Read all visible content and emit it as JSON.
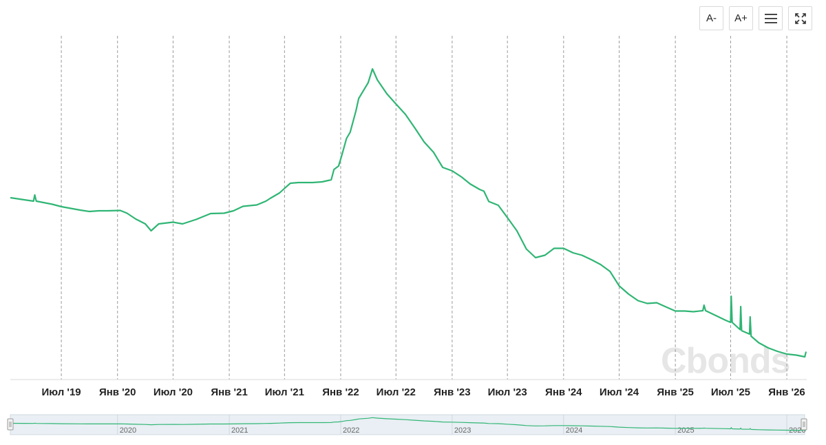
{
  "toolbar": {
    "font_decrease_label": "A-",
    "font_increase_label": "A+",
    "menu_icon": "hamburger-menu-icon",
    "fullscreen_icon": "fullscreen-icon"
  },
  "watermark": "Cbonds",
  "colors": {
    "series": "#2fb574",
    "navigator_fill": "#e9eff4",
    "grid": "#9a9a9a"
  },
  "chart_data": {
    "type": "line",
    "title": "",
    "xlabel": "",
    "ylabel": "",
    "grid": "vertical-dashed",
    "legend": "none",
    "x_ticks": [
      "Июл '19",
      "Янв '20",
      "Июл '20",
      "Янв '21",
      "Июл '21",
      "Янв '22",
      "Июл '22",
      "Янв '23",
      "Июл '23",
      "Янв '24",
      "Июл '24",
      "Янв '25",
      "Июл '25",
      "Янв '26"
    ],
    "navigator_ticks": [
      "2020",
      "2021",
      "2022",
      "2023",
      "2024",
      "2025",
      "2026"
    ],
    "xlim": [
      "2019-01-15",
      "2026-03-05"
    ],
    "ylim": [
      0,
      100
    ],
    "series": [
      {
        "x": [
          "2019-01-15",
          "2019-03-01",
          "2019-04-01",
          "2019-04-05",
          "2019-04-10",
          "2019-06-01",
          "2019-07-01",
          "2019-09-01",
          "2019-10-01",
          "2019-11-01",
          "2019-12-01",
          "2020-01-10",
          "2020-02-01",
          "2020-03-01",
          "2020-04-01",
          "2020-04-20",
          "2020-05-15",
          "2020-07-01",
          "2020-08-01",
          "2020-09-15",
          "2020-11-01",
          "2020-12-15",
          "2021-01-15",
          "2021-02-15",
          "2021-04-01",
          "2021-05-01",
          "2021-05-15",
          "2021-06-15",
          "2021-07-01",
          "2021-07-20",
          "2021-08-15",
          "2021-10-01",
          "2021-11-01",
          "2021-12-01",
          "2021-12-10",
          "2021-12-25",
          "2022-01-05",
          "2022-01-20",
          "2022-02-01",
          "2022-02-20",
          "2022-03-01",
          "2022-04-01",
          "2022-04-15",
          "2022-05-01",
          "2022-06-01",
          "2022-07-01",
          "2022-08-01",
          "2022-09-01",
          "2022-10-01",
          "2022-11-01",
          "2022-12-01",
          "2023-01-01",
          "2023-02-01",
          "2023-03-01",
          "2023-04-01",
          "2023-04-15",
          "2023-05-01",
          "2023-06-01",
          "2023-07-01",
          "2023-08-01",
          "2023-09-01",
          "2023-10-01",
          "2023-11-01",
          "2023-12-01",
          "2024-01-01",
          "2024-02-01",
          "2024-03-01",
          "2024-04-01",
          "2024-05-01",
          "2024-06-01",
          "2024-07-01",
          "2024-08-01",
          "2024-09-01",
          "2024-10-01",
          "2024-11-01",
          "2024-12-01",
          "2025-01-01",
          "2025-02-01",
          "2025-03-01",
          "2025-04-01",
          "2025-04-05",
          "2025-04-10",
          "2025-06-01",
          "2025-06-15",
          "2025-07-01",
          "2025-07-03",
          "2025-07-06",
          "2025-08-01",
          "2025-08-03",
          "2025-08-06",
          "2025-09-01",
          "2025-09-03",
          "2025-09-06",
          "2025-10-01",
          "2025-11-01",
          "2025-12-01",
          "2026-01-01",
          "2026-02-01",
          "2026-03-01",
          "2026-03-05"
        ],
        "y": [
          52.2,
          51.6,
          51.2,
          53.0,
          51.2,
          50.3,
          49.6,
          48.6,
          48.2,
          48.4,
          48.4,
          48.5,
          47.7,
          46.0,
          44.6,
          42.6,
          44.6,
          45.1,
          44.6,
          45.9,
          47.6,
          47.7,
          48.4,
          49.7,
          50.1,
          51.2,
          52.0,
          53.6,
          54.9,
          56.4,
          56.6,
          56.6,
          56.8,
          57.4,
          60.4,
          61.4,
          64.6,
          69.4,
          71.2,
          77.4,
          81.0,
          85.6,
          89.6,
          86.4,
          82.4,
          79.4,
          76.4,
          72.4,
          68.4,
          65.4,
          61.0,
          60.0,
          58.2,
          56.2,
          54.6,
          54.1,
          51.1,
          50.0,
          46.4,
          42.6,
          37.3,
          34.8,
          35.5,
          37.5,
          37.5,
          36.2,
          35.5,
          34.2,
          32.8,
          30.8,
          26.6,
          24.2,
          22.3,
          21.5,
          21.7,
          20.5,
          19.3,
          19.3,
          19.1,
          19.4,
          21.0,
          19.4,
          17.2,
          16.6,
          16.0,
          23.6,
          16.0,
          13.9,
          20.6,
          13.6,
          12.6,
          17.6,
          12.0,
          10.1,
          8.6,
          7.6,
          6.8,
          6.5,
          6.0,
          7.5
        ]
      }
    ]
  }
}
